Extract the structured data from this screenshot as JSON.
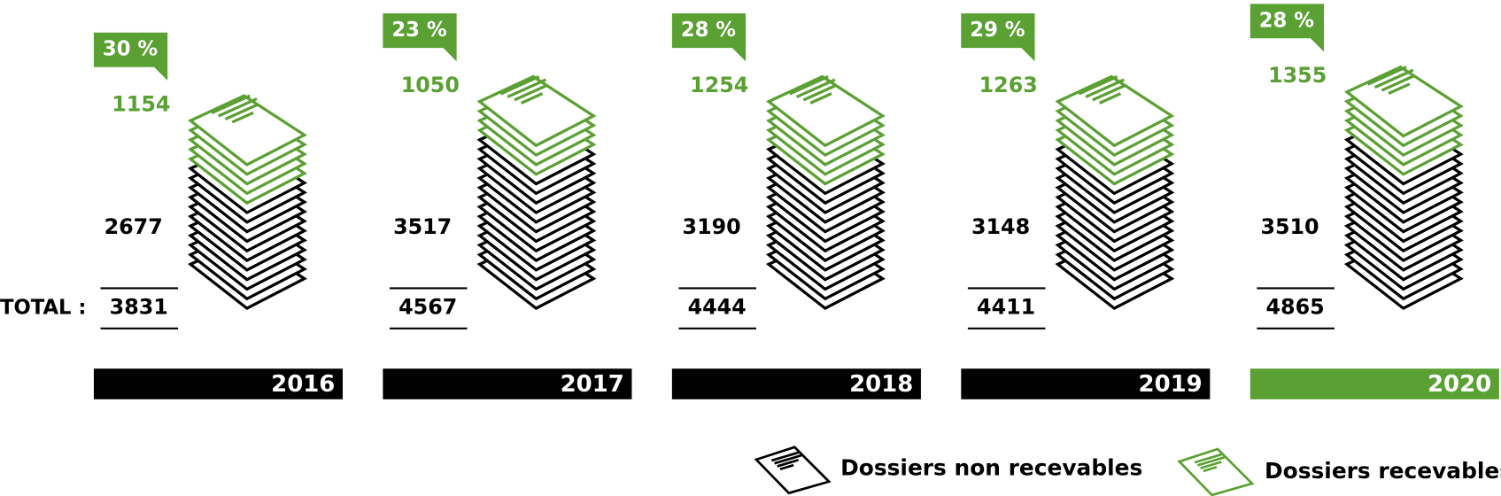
{
  "chart_data": {
    "type": "pictogram",
    "total_label": "TOTAL :",
    "categories": [
      "2016",
      "2017",
      "2018",
      "2019",
      "2020"
    ],
    "category_colors": [
      "#000000",
      "#000000",
      "#000000",
      "#000000",
      "#5aa033"
    ],
    "series": [
      {
        "name": "Dossiers non recevables",
        "color": "#000000",
        "values": [
          2677,
          3517,
          3190,
          3148,
          3510
        ]
      },
      {
        "name": "Dossiers recevables",
        "color": "#5aa033",
        "values": [
          1154,
          1050,
          1254,
          1263,
          1355
        ]
      }
    ],
    "totals": [
      3831,
      4567,
      4444,
      4411,
      4865
    ],
    "shares": {
      "color": "#5aa033",
      "values": [
        30,
        23,
        28,
        29,
        28
      ],
      "value_labels": [
        "30 %",
        "23 %",
        "28 %",
        "29 %",
        "28 %"
      ]
    }
  }
}
